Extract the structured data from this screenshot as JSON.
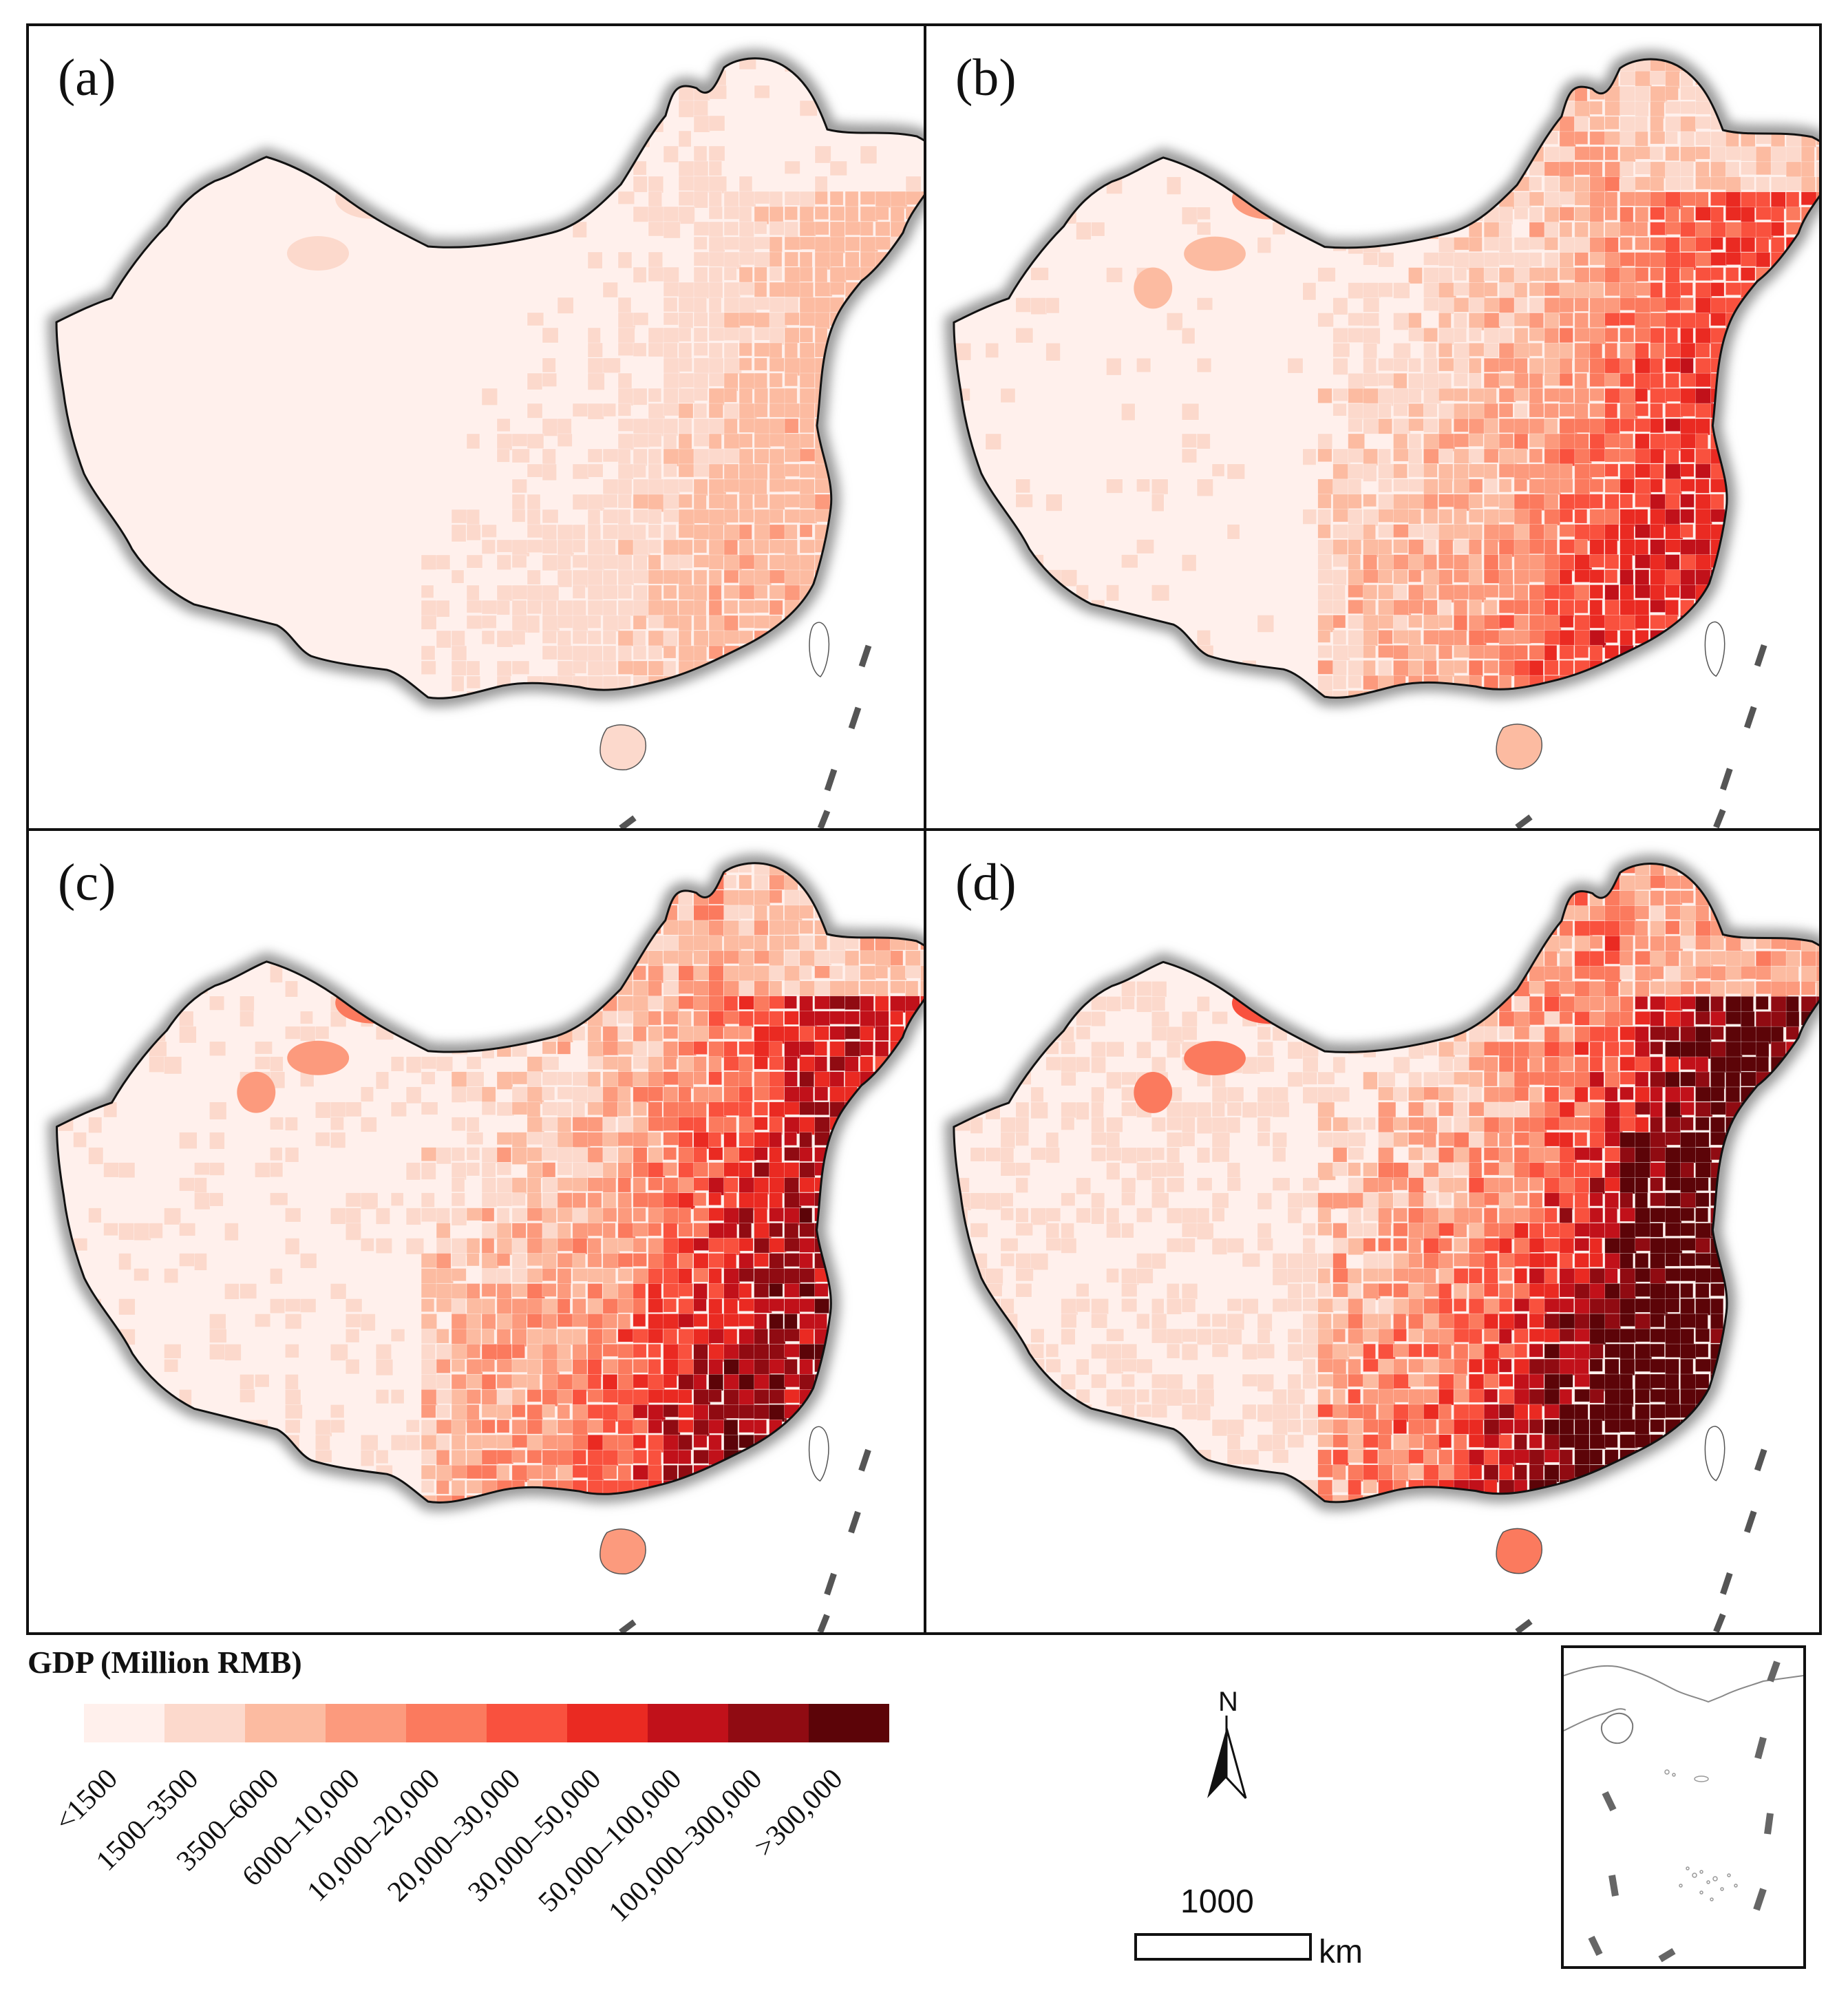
{
  "figure": {
    "panels": [
      {
        "label": "(a)",
        "intensity": 0.2
      },
      {
        "label": "(b)",
        "intensity": 0.48
      },
      {
        "label": "(c)",
        "intensity": 0.6
      },
      {
        "label": "(d)",
        "intensity": 0.8
      }
    ]
  },
  "legend": {
    "title": "GDP (Million RMB)",
    "classes": [
      {
        "label": "<1500",
        "color": "#fff0ec"
      },
      {
        "label": "1500–3500",
        "color": "#fcd9cc"
      },
      {
        "label": "3500–6000",
        "color": "#fcbba1"
      },
      {
        "label": "6000–10,000",
        "color": "#fc9a7d"
      },
      {
        "label": "10,000–20,000",
        "color": "#fb7a5e"
      },
      {
        "label": "20,000–30,000",
        "color": "#f9513e"
      },
      {
        "label": "30,000–50,000",
        "color": "#ea2a22"
      },
      {
        "label": "50,000–100,000",
        "color": "#c1111a"
      },
      {
        "label": "100,000–300,000",
        "color": "#900b12"
      },
      {
        "label": ">300,000",
        "color": "#5c0408"
      }
    ]
  },
  "north_arrow": {
    "label": "N"
  },
  "scale_bar": {
    "value": "1000",
    "unit": "km"
  }
}
